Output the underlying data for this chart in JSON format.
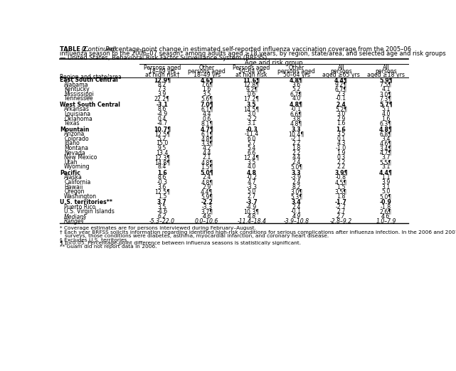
{
  "col_headers": [
    [
      "Persons aged",
      "18–49 yrs",
      "at high risk†"
    ],
    [
      "Other",
      "persons aged",
      "18–49 yrs"
    ],
    [
      "Persons aged",
      "50–64 yrs",
      "at high risk"
    ],
    [
      "Other",
      "persons aged",
      "50–64 yrs"
    ],
    [
      "All",
      "persons",
      "aged ≥65 yrs"
    ],
    [
      "All",
      "persons",
      "aged ≥18 yrs"
    ]
  ],
  "group_header": "Age and risk group",
  "row_header": "Region and state/area",
  "rows": [
    {
      "label": "East South Central",
      "bold": true,
      "italic": false,
      "values": [
        "12.9¶",
        "4.6¶",
        "11.6¶",
        "4.8¶",
        "4.4¶",
        "5.9¶"
      ]
    },
    {
      "label": "Alabama",
      "bold": false,
      "italic": false,
      "values": [
        "8.2",
        "7.6¶",
        "12.8¶",
        "3.6",
        "9.2¶",
        "7.5¶"
      ]
    },
    {
      "label": "Kentucky",
      "bold": false,
      "italic": false,
      "values": [
        "7.3",
        "1.6",
        "9.2¶",
        "5.2",
        "6.7¶",
        "4.1"
      ]
    },
    {
      "label": "Mississippi",
      "bold": false,
      "italic": false,
      "values": [
        "3.9",
        "3.5",
        "0.6",
        "6.7¶",
        "2.3",
        "3.0¶"
      ]
    },
    {
      "label": "Tennessee",
      "bold": false,
      "italic": false,
      "values": [
        "22.2¶",
        "5.6¶",
        "17.2¶",
        "4.0",
        "-0.1",
        "7.3¶"
      ]
    },
    {
      "label": "West South Central",
      "bold": true,
      "italic": false,
      "values": [
        "-3.1",
        "7.0¶",
        "3.5",
        "4.8¶",
        "2.4",
        "5.7¶"
      ]
    },
    {
      "label": "Arkansas",
      "bold": false,
      "italic": false,
      "values": [
        "8.6",
        "6.1¶",
        "14.5¶",
        "-0.1",
        "5.2¶",
        "5.1"
      ]
    },
    {
      "label": "Louisiana",
      "bold": false,
      "italic": false,
      "values": [
        "-4.9",
        "4.4",
        "3.0",
        "6.6¶",
        "3.0",
        "4.0"
      ]
    },
    {
      "label": "Oklahoma",
      "bold": false,
      "italic": false,
      "values": [
        "0.4",
        "0.6",
        "-2.2",
        "3.8",
        "2.9",
        "1.6"
      ]
    },
    {
      "label": "Texas",
      "bold": false,
      "italic": false,
      "values": [
        "-4.7",
        "8.1¶",
        "3.1",
        "4.8¶",
        "1.6",
        "6.3¶"
      ]
    },
    {
      "label": "Mountain",
      "bold": true,
      "italic": false,
      "values": [
        "10.7¶",
        "4.7¶",
        "-0.3",
        "3.3",
        "1.6",
        "4.8¶"
      ]
    },
    {
      "label": "Arizona",
      "bold": false,
      "italic": false,
      "values": [
        "12.5¶",
        "6.1¶",
        "-11.4",
        "10.4¶",
        "3.5",
        "6.8¶"
      ]
    },
    {
      "label": "Colorado",
      "bold": false,
      "italic": false,
      "values": [
        "5.2",
        "4.8¶",
        "6.0",
        "-2.1",
        "0.1",
        "3.4"
      ]
    },
    {
      "label": "Idaho",
      "bold": false,
      "italic": false,
      "values": [
        "15.0",
        "3.3¶",
        "5.7",
        "2.2",
        "4.3",
        "4.6¶"
      ]
    },
    {
      "label": "Montana",
      "bold": false,
      "italic": false,
      "values": [
        "9.5",
        "4.2",
        "5.4",
        "1.8",
        "-1.0",
        "3.4¶"
      ]
    },
    {
      "label": "Nevada",
      "bold": false,
      "italic": false,
      "values": [
        "13.4",
        "4.4",
        "6.6",
        "2.2",
        "1.9",
        "4.7¶"
      ]
    },
    {
      "label": "New Mexico",
      "bold": false,
      "italic": false,
      "values": [
        "12.3¶",
        "2.1",
        "12.4¶",
        "4.4",
        "0.3",
        "3.7"
      ]
    },
    {
      "label": "Utah",
      "bold": false,
      "italic": false,
      "values": [
        "14.8¶",
        "4.8¶",
        "3.5",
        "2.4",
        "2.2",
        "5.5¶"
      ]
    },
    {
      "label": "Wyoming",
      "bold": false,
      "italic": false,
      "values": [
        "8.4",
        "1.5¶",
        "4.0",
        "5.0¶",
        "2.2",
        "3.1"
      ]
    },
    {
      "label": "Pacific",
      "bold": true,
      "italic": false,
      "values": [
        "1.6",
        "5.0¶",
        "4.8",
        "3.3",
        "3.9¶",
        "4.4¶"
      ]
    },
    {
      "label": "Alaska",
      "bold": false,
      "italic": false,
      "values": [
        "8.6",
        "2.4",
        "-0.2",
        "-3.9",
        "-0.8",
        "1.1"
      ]
    },
    {
      "label": "California",
      "bold": false,
      "italic": false,
      "values": [
        "-0.3",
        "4.8¶",
        "4.7",
        "2.4",
        "4.5¶",
        "3.9"
      ]
    },
    {
      "label": "Hawaii",
      "bold": false,
      "italic": false,
      "values": [
        "3.6",
        "2.9",
        "-3.3",
        "8.2",
        "1.5",
        "3.1"
      ]
    },
    {
      "label": "Oregon",
      "bold": false,
      "italic": false,
      "values": [
        "12.5¶",
        "4.4¶",
        "5.0",
        "3.0¶",
        "3.5¶",
        "5.0"
      ]
    },
    {
      "label": "Washington",
      "bold": false,
      "italic": false,
      "values": [
        "1.5",
        "5.9¶",
        "2.7",
        "5.3¶",
        "1.8",
        "5.0¶"
      ]
    },
    {
      "label": "U.S. territories**",
      "bold": true,
      "italic": false,
      "values": [
        "3.7",
        "-2.2",
        "-3.7",
        "3.4",
        "-1.7",
        "-0.9"
      ]
    },
    {
      "label": "Puerto Rico",
      "bold": false,
      "italic": false,
      "values": [
        "3.5",
        "-3.3",
        "-4.9",
        "2.4",
        "-2.7",
        "-1.8"
      ]
    },
    {
      "label": "U.S. Virgin Islands",
      "bold": false,
      "italic": false,
      "values": [
        "-4.6",
        "3.7¶",
        "10.3¶",
        "-0.1",
        "2.7",
        "2.6¶"
      ]
    },
    {
      "label": "Median§",
      "bold": false,
      "italic": true,
      "values": [
        "6.2",
        "4.6",
        "4.8",
        "4.9",
        "2.7",
        "4.6"
      ]
    },
    {
      "label": "Range§",
      "bold": false,
      "italic": true,
      "values": [
        "-5.3–22.0",
        "0.0–10.6",
        "-11.4–18.4",
        "-3.9–10.8",
        "-2.8–9.2",
        "1.0–7.9"
      ]
    }
  ],
  "footnotes": [
    [
      "normal",
      "* Coverage estimates are for persons interviewed during February–August."
    ],
    [
      "normal",
      "† Each year BRFSS solicits information regarding identified high-risk conditions for serious complications after influenza infection. In the 2006 and 2007"
    ],
    [
      "normal",
      "   surveys, those conditions were diabetes, asthma, myocardial infarction, and coronary heart disease."
    ],
    [
      "normal",
      "§ Excludes U.S. territories."
    ],
    [
      "normal",
      "¶ p<0.05. Percentage-point difference between influenza seasons is statistically significant."
    ],
    [
      "normal",
      "** Guam did not report data in 2006."
    ]
  ],
  "bg_color": "#ffffff",
  "text_color": "#000000",
  "title_bold": "TABLE 2.",
  "title_italic": " (Continued)",
  "title_rest1": " Percentage-point change in estimated self-reported influenza vaccination coverage from the 2005–06",
  "title_line2": "influenza season to the 2006–07 season* among adults aged ≥18 years, by region, state/area, and selected age and risk groups",
  "title_line3": "— United States, Behavioral Risk Factor Surveillance System (BRFSS)"
}
